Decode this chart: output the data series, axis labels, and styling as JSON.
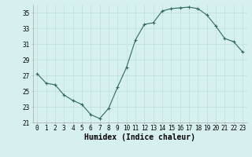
{
  "x": [
    0,
    1,
    2,
    3,
    4,
    5,
    6,
    7,
    8,
    9,
    10,
    11,
    12,
    13,
    14,
    15,
    16,
    17,
    18,
    19,
    20,
    21,
    22,
    23
  ],
  "y": [
    27.2,
    26.0,
    25.8,
    24.5,
    23.8,
    23.3,
    22.0,
    21.5,
    22.8,
    25.5,
    28.0,
    31.5,
    33.5,
    33.7,
    35.2,
    35.5,
    35.6,
    35.7,
    35.5,
    34.7,
    33.3,
    31.7,
    31.3,
    30.0
  ],
  "line_color": "#2e6b5e",
  "marker": "+",
  "bg_color": "#d6f0ef",
  "grid_color": "#c0dedd",
  "xlabel": "Humidex (Indice chaleur)",
  "ylim": [
    21,
    36
  ],
  "yticks": [
    21,
    23,
    25,
    27,
    29,
    31,
    33,
    35
  ],
  "xticks": [
    0,
    1,
    2,
    3,
    4,
    5,
    6,
    7,
    8,
    9,
    10,
    11,
    12,
    13,
    14,
    15,
    16,
    17,
    18,
    19,
    20,
    21,
    22,
    23
  ],
  "tick_fontsize": 5.5,
  "xlabel_fontsize": 7.0,
  "linewidth": 0.8,
  "markersize": 3,
  "markeredgewidth": 0.8
}
